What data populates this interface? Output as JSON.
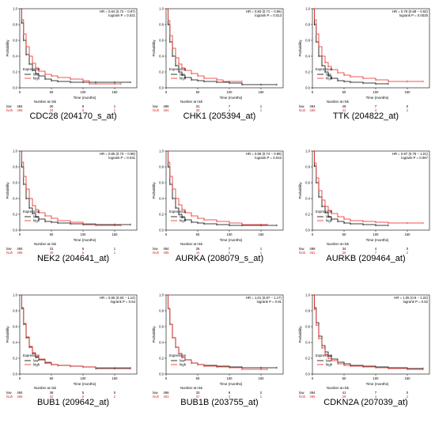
{
  "colors": {
    "low": "#000000",
    "high": "#e8251d",
    "ci": "#cfcfcf"
  },
  "common": {
    "ylabel": "Probability",
    "xlabel": "Time (months)",
    "legend_title": "Expression",
    "legend_low": "low",
    "legend_high": "high",
    "risk_title": "Number at risk",
    "risk_low_label": "low",
    "risk_high_label": "high",
    "yticks": [
      "0.0",
      "0.2",
      "0.4",
      "0.6",
      "0.8",
      "1.0"
    ],
    "xticks": [
      "0",
      "50",
      "100",
      "150"
    ]
  },
  "chart_data": [
    {
      "type": "line",
      "title": "CDC28 (204170_s_at)",
      "hr": "HR = 0.84 (0.72 − 0.97)",
      "logrank": "logrank P = 0.021",
      "xlim": [
        0,
        185
      ],
      "ylim": [
        0,
        1
      ],
      "risk_low": [
        "494",
        "30",
        "8",
        "1"
      ],
      "risk_high": [
        "495",
        "34",
        "9",
        "1"
      ],
      "series": [
        {
          "name": "low",
          "x": [
            0,
            3,
            6,
            10,
            15,
            20,
            25,
            30,
            40,
            50,
            60,
            80,
            100,
            120,
            150,
            175
          ],
          "y": [
            1.0,
            0.82,
            0.6,
            0.42,
            0.3,
            0.22,
            0.18,
            0.15,
            0.11,
            0.09,
            0.08,
            0.07,
            0.07,
            0.07,
            0.07,
            0.07
          ]
        },
        {
          "name": "high",
          "x": [
            0,
            3,
            6,
            10,
            15,
            20,
            25,
            30,
            40,
            50,
            60,
            80,
            100,
            110,
            120,
            150,
            160
          ],
          "y": [
            1.0,
            0.86,
            0.68,
            0.52,
            0.4,
            0.31,
            0.25,
            0.21,
            0.17,
            0.15,
            0.13,
            0.11,
            0.09,
            0.05,
            0.05,
            0.05,
            0.05
          ]
        }
      ]
    },
    {
      "type": "line",
      "title": "CHK1 (205394_at)",
      "hr": "HR = 0.83 (0.71 − 0.96)",
      "logrank": "logrank P = 0.013",
      "xlim": [
        0,
        185
      ],
      "ylim": [
        0,
        1
      ],
      "risk_low": [
        "495",
        "31",
        "7",
        "1"
      ],
      "risk_high": [
        "494",
        "39",
        "4",
        "1"
      ],
      "series": [
        {
          "name": "low",
          "x": [
            0,
            3,
            6,
            10,
            15,
            20,
            25,
            30,
            40,
            50,
            60,
            80,
            100,
            120,
            150,
            175
          ],
          "y": [
            1.0,
            0.8,
            0.58,
            0.4,
            0.28,
            0.2,
            0.16,
            0.13,
            0.1,
            0.09,
            0.08,
            0.07,
            0.06,
            0.04,
            0.04,
            0.04
          ]
        },
        {
          "name": "high",
          "x": [
            0,
            3,
            6,
            10,
            15,
            20,
            25,
            30,
            40,
            50,
            60,
            80,
            90,
            100,
            120
          ],
          "y": [
            1.0,
            0.85,
            0.66,
            0.5,
            0.38,
            0.3,
            0.25,
            0.22,
            0.18,
            0.15,
            0.12,
            0.1,
            0.08,
            0.08,
            0.08
          ]
        }
      ]
    },
    {
      "type": "line",
      "title": "TTK (204822_at)",
      "hr": "HR = 0.79 (0.68 − 0.92)",
      "logrank": "logrank P = 0.0025",
      "xlim": [
        0,
        185
      ],
      "ylim": [
        0,
        1
      ],
      "risk_low": [
        "494",
        "29",
        "7",
        "0"
      ],
      "risk_high": [
        "495",
        "41",
        "4",
        "2"
      ],
      "series": [
        {
          "name": "low",
          "x": [
            0,
            3,
            6,
            10,
            15,
            20,
            25,
            30,
            40,
            50,
            60,
            80,
            100,
            120
          ],
          "y": [
            1.0,
            0.8,
            0.58,
            0.4,
            0.28,
            0.2,
            0.15,
            0.12,
            0.09,
            0.08,
            0.07,
            0.06,
            0.05,
            0.05
          ]
        },
        {
          "name": "high",
          "x": [
            0,
            3,
            6,
            10,
            15,
            20,
            25,
            30,
            40,
            50,
            60,
            80,
            100,
            120,
            150,
            175
          ],
          "y": [
            1.0,
            0.86,
            0.68,
            0.52,
            0.4,
            0.32,
            0.27,
            0.23,
            0.19,
            0.16,
            0.14,
            0.12,
            0.1,
            0.08,
            0.08,
            0.08
          ]
        }
      ]
    },
    {
      "type": "line",
      "title": "NEK2 (204641_at)",
      "hr": "HR = 0.85 (0.73 − 0.99)",
      "logrank": "logrank P = 0.031",
      "xlim": [
        0,
        185
      ],
      "ylim": [
        0,
        1
      ],
      "risk_low": [
        "494",
        "31",
        "6",
        "1"
      ],
      "risk_high": [
        "495",
        "39",
        "5",
        "1"
      ],
      "series": [
        {
          "name": "low",
          "x": [
            0,
            3,
            6,
            10,
            15,
            20,
            25,
            30,
            40,
            50,
            60,
            80,
            100,
            120,
            150,
            175
          ],
          "y": [
            1.0,
            0.8,
            0.58,
            0.4,
            0.28,
            0.21,
            0.17,
            0.14,
            0.11,
            0.1,
            0.09,
            0.08,
            0.07,
            0.07,
            0.07,
            0.07
          ]
        },
        {
          "name": "high",
          "x": [
            0,
            3,
            6,
            10,
            15,
            20,
            25,
            30,
            40,
            50,
            60,
            80,
            100,
            120,
            150,
            160
          ],
          "y": [
            1.0,
            0.86,
            0.68,
            0.52,
            0.4,
            0.31,
            0.26,
            0.22,
            0.18,
            0.15,
            0.12,
            0.1,
            0.08,
            0.06,
            0.06,
            0.06
          ]
        }
      ]
    },
    {
      "type": "line",
      "title": "AURKA (208079_s_at)",
      "hr": "HR = 0.86 (0.74 − 0.99)",
      "logrank": "logrank P = 0.042",
      "xlim": [
        0,
        185
      ],
      "ylim": [
        0,
        1
      ],
      "risk_low": [
        "494",
        "26",
        "7",
        "1"
      ],
      "risk_high": [
        "495",
        "44",
        "6",
        "1"
      ],
      "series": [
        {
          "name": "low",
          "x": [
            0,
            3,
            6,
            10,
            15,
            20,
            25,
            30,
            40,
            50,
            60,
            80,
            100,
            120,
            150,
            175
          ],
          "y": [
            1.0,
            0.8,
            0.58,
            0.4,
            0.28,
            0.2,
            0.16,
            0.13,
            0.1,
            0.09,
            0.08,
            0.07,
            0.06,
            0.06,
            0.06,
            0.06
          ]
        },
        {
          "name": "high",
          "x": [
            0,
            3,
            6,
            10,
            15,
            20,
            25,
            30,
            40,
            50,
            60,
            80,
            100,
            120,
            150,
            160
          ],
          "y": [
            1.0,
            0.86,
            0.68,
            0.52,
            0.4,
            0.32,
            0.26,
            0.22,
            0.18,
            0.15,
            0.13,
            0.11,
            0.09,
            0.07,
            0.07,
            0.07
          ]
        }
      ]
    },
    {
      "type": "line",
      "title": "AURKB (209464_at)",
      "hr": "HR = 0.87 (0.75 − 1.01)",
      "logrank": "logrank P = 0.067",
      "xlim": [
        0,
        185
      ],
      "ylim": [
        0,
        1
      ],
      "risk_low": [
        "498",
        "34",
        "4",
        "0"
      ],
      "risk_high": [
        "491",
        "36",
        "7",
        "2"
      ],
      "series": [
        {
          "name": "low",
          "x": [
            0,
            3,
            6,
            10,
            15,
            20,
            25,
            30,
            40,
            50,
            60,
            80,
            100,
            120
          ],
          "y": [
            1.0,
            0.81,
            0.6,
            0.42,
            0.3,
            0.22,
            0.17,
            0.14,
            0.11,
            0.09,
            0.08,
            0.07,
            0.06,
            0.06
          ]
        },
        {
          "name": "high",
          "x": [
            0,
            3,
            6,
            10,
            15,
            20,
            25,
            30,
            40,
            50,
            60,
            80,
            100,
            120,
            150,
            175
          ],
          "y": [
            1.0,
            0.85,
            0.66,
            0.5,
            0.38,
            0.3,
            0.25,
            0.21,
            0.17,
            0.14,
            0.12,
            0.11,
            0.1,
            0.09,
            0.09,
            0.09
          ]
        }
      ]
    },
    {
      "type": "line",
      "title": "BUB1 (209642_at)",
      "hr": "HR = 0.96 (0.83 − 1.12)",
      "logrank": "logrank P = 0.64",
      "xlim": [
        0,
        185
      ],
      "ylim": [
        0,
        1
      ],
      "risk_low": [
        "494",
        "38",
        "5",
        "0"
      ],
      "risk_high": [
        "495",
        "32",
        "9",
        "2"
      ],
      "series": [
        {
          "name": "low",
          "x": [
            0,
            3,
            6,
            10,
            15,
            20,
            25,
            30,
            40,
            50,
            60,
            80,
            100,
            120,
            150,
            175
          ],
          "y": [
            1.0,
            0.83,
            0.63,
            0.46,
            0.34,
            0.26,
            0.21,
            0.18,
            0.14,
            0.12,
            0.11,
            0.1,
            0.09,
            0.07,
            0.07,
            0.07
          ]
        },
        {
          "name": "high",
          "x": [
            0,
            3,
            6,
            10,
            15,
            20,
            25,
            30,
            40,
            50,
            60,
            80,
            100,
            120,
            150,
            175
          ],
          "y": [
            1.0,
            0.84,
            0.64,
            0.47,
            0.35,
            0.27,
            0.22,
            0.19,
            0.15,
            0.12,
            0.11,
            0.1,
            0.09,
            0.08,
            0.08,
            0.08
          ]
        }
      ]
    },
    {
      "type": "line",
      "title": "BUB1B (203755_at)",
      "hr": "HR = 1.01 (0.87 − 1.17)",
      "logrank": "logrank P = 0.91",
      "xlim": [
        0,
        185
      ],
      "ylim": [
        0,
        1
      ],
      "risk_low": [
        "496",
        "33",
        "9",
        "2"
      ],
      "risk_high": [
        "493",
        "37",
        "3",
        "1"
      ],
      "series": [
        {
          "name": "low",
          "x": [
            0,
            3,
            6,
            10,
            15,
            20,
            25,
            30,
            40,
            50,
            60,
            80,
            100,
            120,
            150,
            175
          ],
          "y": [
            1.0,
            0.83,
            0.63,
            0.46,
            0.34,
            0.26,
            0.21,
            0.18,
            0.14,
            0.12,
            0.11,
            0.1,
            0.09,
            0.08,
            0.08,
            0.08
          ]
        },
        {
          "name": "high",
          "x": [
            0,
            3,
            6,
            10,
            15,
            20,
            25,
            30,
            40,
            50,
            60,
            80,
            100,
            120,
            150,
            160
          ],
          "y": [
            1.0,
            0.83,
            0.63,
            0.46,
            0.34,
            0.26,
            0.21,
            0.18,
            0.14,
            0.12,
            0.1,
            0.09,
            0.08,
            0.06,
            0.06,
            0.06
          ]
        }
      ]
    },
    {
      "type": "line",
      "title": "CDKN2A (207039_at)",
      "hr": "HR = 1.05 (0.9 − 1.22)",
      "logrank": "logrank P = 0.52",
      "xlim": [
        0,
        185
      ],
      "ylim": [
        0,
        1
      ],
      "risk_low": [
        "494",
        "41",
        "7",
        "0"
      ],
      "risk_high": [
        "495",
        "29",
        "4",
        "2"
      ],
      "series": [
        {
          "name": "low",
          "x": [
            0,
            3,
            6,
            10,
            15,
            20,
            25,
            30,
            40,
            50,
            60,
            80,
            100,
            120,
            150,
            175
          ],
          "y": [
            1.0,
            0.84,
            0.65,
            0.48,
            0.36,
            0.28,
            0.23,
            0.19,
            0.15,
            0.13,
            0.11,
            0.1,
            0.09,
            0.08,
            0.07,
            0.07
          ]
        },
        {
          "name": "high",
          "x": [
            0,
            3,
            6,
            10,
            15,
            20,
            25,
            30,
            40,
            50,
            60,
            80,
            100,
            120,
            150,
            175
          ],
          "y": [
            1.0,
            0.82,
            0.62,
            0.45,
            0.33,
            0.25,
            0.2,
            0.17,
            0.13,
            0.11,
            0.1,
            0.09,
            0.08,
            0.07,
            0.06,
            0.06
          ]
        }
      ]
    }
  ]
}
